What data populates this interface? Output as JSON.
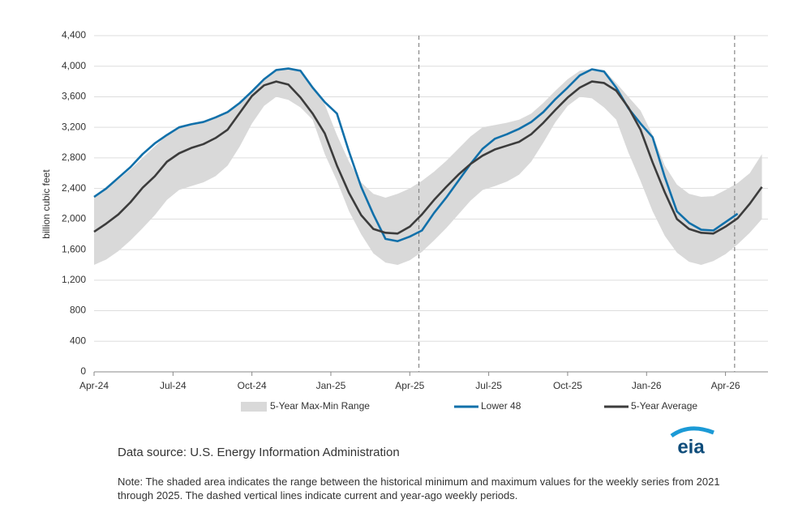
{
  "chart_data": {
    "type": "line",
    "y_label": "billion cubic feet",
    "x": [
      0,
      2,
      4,
      6,
      8,
      10,
      12,
      14,
      16,
      18,
      20,
      22,
      24,
      26,
      28,
      30,
      32,
      34,
      36,
      38,
      40,
      42,
      44,
      46,
      48,
      50,
      52,
      54,
      56,
      58,
      60,
      62,
      64,
      66,
      68,
      70,
      72,
      74,
      76,
      78,
      80,
      82,
      84,
      86,
      88,
      90,
      92,
      94,
      96,
      98,
      100,
      102,
      104,
      106,
      108,
      110
    ],
    "xlim": [
      0,
      111
    ],
    "xticks": [
      {
        "value": 0,
        "label": "Apr-24"
      },
      {
        "value": 13,
        "label": "Jul-24"
      },
      {
        "value": 26,
        "label": "Oct-24"
      },
      {
        "value": 39,
        "label": "Jan-25"
      },
      {
        "value": 52,
        "label": "Apr-25"
      },
      {
        "value": 65,
        "label": "Jul-25"
      },
      {
        "value": 78,
        "label": "Oct-25"
      },
      {
        "value": 91,
        "label": "Jan-26"
      },
      {
        "value": 104,
        "label": "Apr-26"
      }
    ],
    "ylim": [
      0,
      4400
    ],
    "yticks": [
      0,
      400,
      800,
      {
        "value": 1200,
        "label": "1,200"
      },
      {
        "value": 1600,
        "label": "1,600"
      },
      {
        "value": 2000,
        "label": "2,000"
      },
      {
        "value": 2400,
        "label": "2,400"
      },
      {
        "value": 2800,
        "label": "2,800"
      },
      {
        "value": 3200,
        "label": "3,200"
      },
      {
        "value": 3600,
        "label": "3,600"
      },
      {
        "value": 4000,
        "label": "4,000"
      },
      {
        "value": 4400,
        "label": "4,400"
      }
    ],
    "grid": true,
    "vlines": [
      53.5,
      105.5
    ],
    "band": {
      "name": "5-Year Max-Min Range",
      "color": "#d9d9d9",
      "max": [
        2300,
        2400,
        2520,
        2650,
        2800,
        2950,
        3100,
        3200,
        3250,
        3280,
        3330,
        3400,
        3520,
        3670,
        3830,
        3950,
        3970,
        3960,
        3740,
        3500,
        3100,
        2750,
        2480,
        2330,
        2280,
        2330,
        2400,
        2500,
        2620,
        2760,
        2920,
        3080,
        3200,
        3230,
        3260,
        3300,
        3380,
        3520,
        3680,
        3830,
        3940,
        3960,
        3950,
        3780,
        3600,
        3420,
        3100,
        2700,
        2450,
        2330,
        2290,
        2300,
        2380,
        2470,
        2600,
        2850
      ],
      "min": [
        1400,
        1470,
        1580,
        1720,
        1880,
        2050,
        2250,
        2380,
        2430,
        2480,
        2560,
        2700,
        2950,
        3250,
        3480,
        3600,
        3560,
        3460,
        3300,
        2850,
        2500,
        2100,
        1800,
        1550,
        1430,
        1400,
        1460,
        1570,
        1720,
        1880,
        2060,
        2240,
        2380,
        2430,
        2490,
        2580,
        2750,
        3000,
        3270,
        3480,
        3600,
        3580,
        3460,
        3300,
        2870,
        2500,
        2100,
        1780,
        1560,
        1440,
        1400,
        1450,
        1540,
        1670,
        1820,
        2000
      ]
    },
    "series": [
      {
        "name": "Lower 48",
        "color": "#1170aa",
        "values": [
          2290,
          2400,
          2540,
          2680,
          2850,
          2990,
          3100,
          3200,
          3240,
          3270,
          3330,
          3400,
          3520,
          3670,
          3830,
          3950,
          3970,
          3940,
          3720,
          3530,
          3380,
          2880,
          2420,
          2060,
          1740,
          1710,
          1770,
          1850,
          2080,
          2280,
          2500,
          2720,
          2920,
          3050,
          3110,
          3180,
          3270,
          3400,
          3570,
          3720,
          3880,
          3960,
          3930,
          3720,
          3450,
          3250,
          3070,
          2550,
          2100,
          1950,
          1860,
          1850,
          1960,
          2070,
          null,
          null
        ]
      },
      {
        "name": "5-Year Average",
        "color": "#3c3c3c",
        "values": [
          1834,
          1940,
          2060,
          2220,
          2410,
          2560,
          2750,
          2860,
          2930,
          2980,
          3060,
          3170,
          3390,
          3610,
          3750,
          3800,
          3760,
          3590,
          3380,
          3120,
          2700,
          2340,
          2050,
          1870,
          1820,
          1810,
          1900,
          2060,
          2250,
          2420,
          2580,
          2720,
          2830,
          2910,
          2960,
          3010,
          3110,
          3260,
          3430,
          3590,
          3720,
          3800,
          3780,
          3680,
          3460,
          3170,
          2740,
          2350,
          2000,
          1870,
          1820,
          1810,
          1900,
          2010,
          2200,
          2420
        ]
      }
    ],
    "source": "Data source: U.S. Energy Information Administration",
    "logo": "eia",
    "note": "Note: The shaded area indicates the range between the historical minimum and maximum values for the weekly series from 2021 through 2025. The dashed vertical lines indicate current and year-ago weekly periods."
  }
}
